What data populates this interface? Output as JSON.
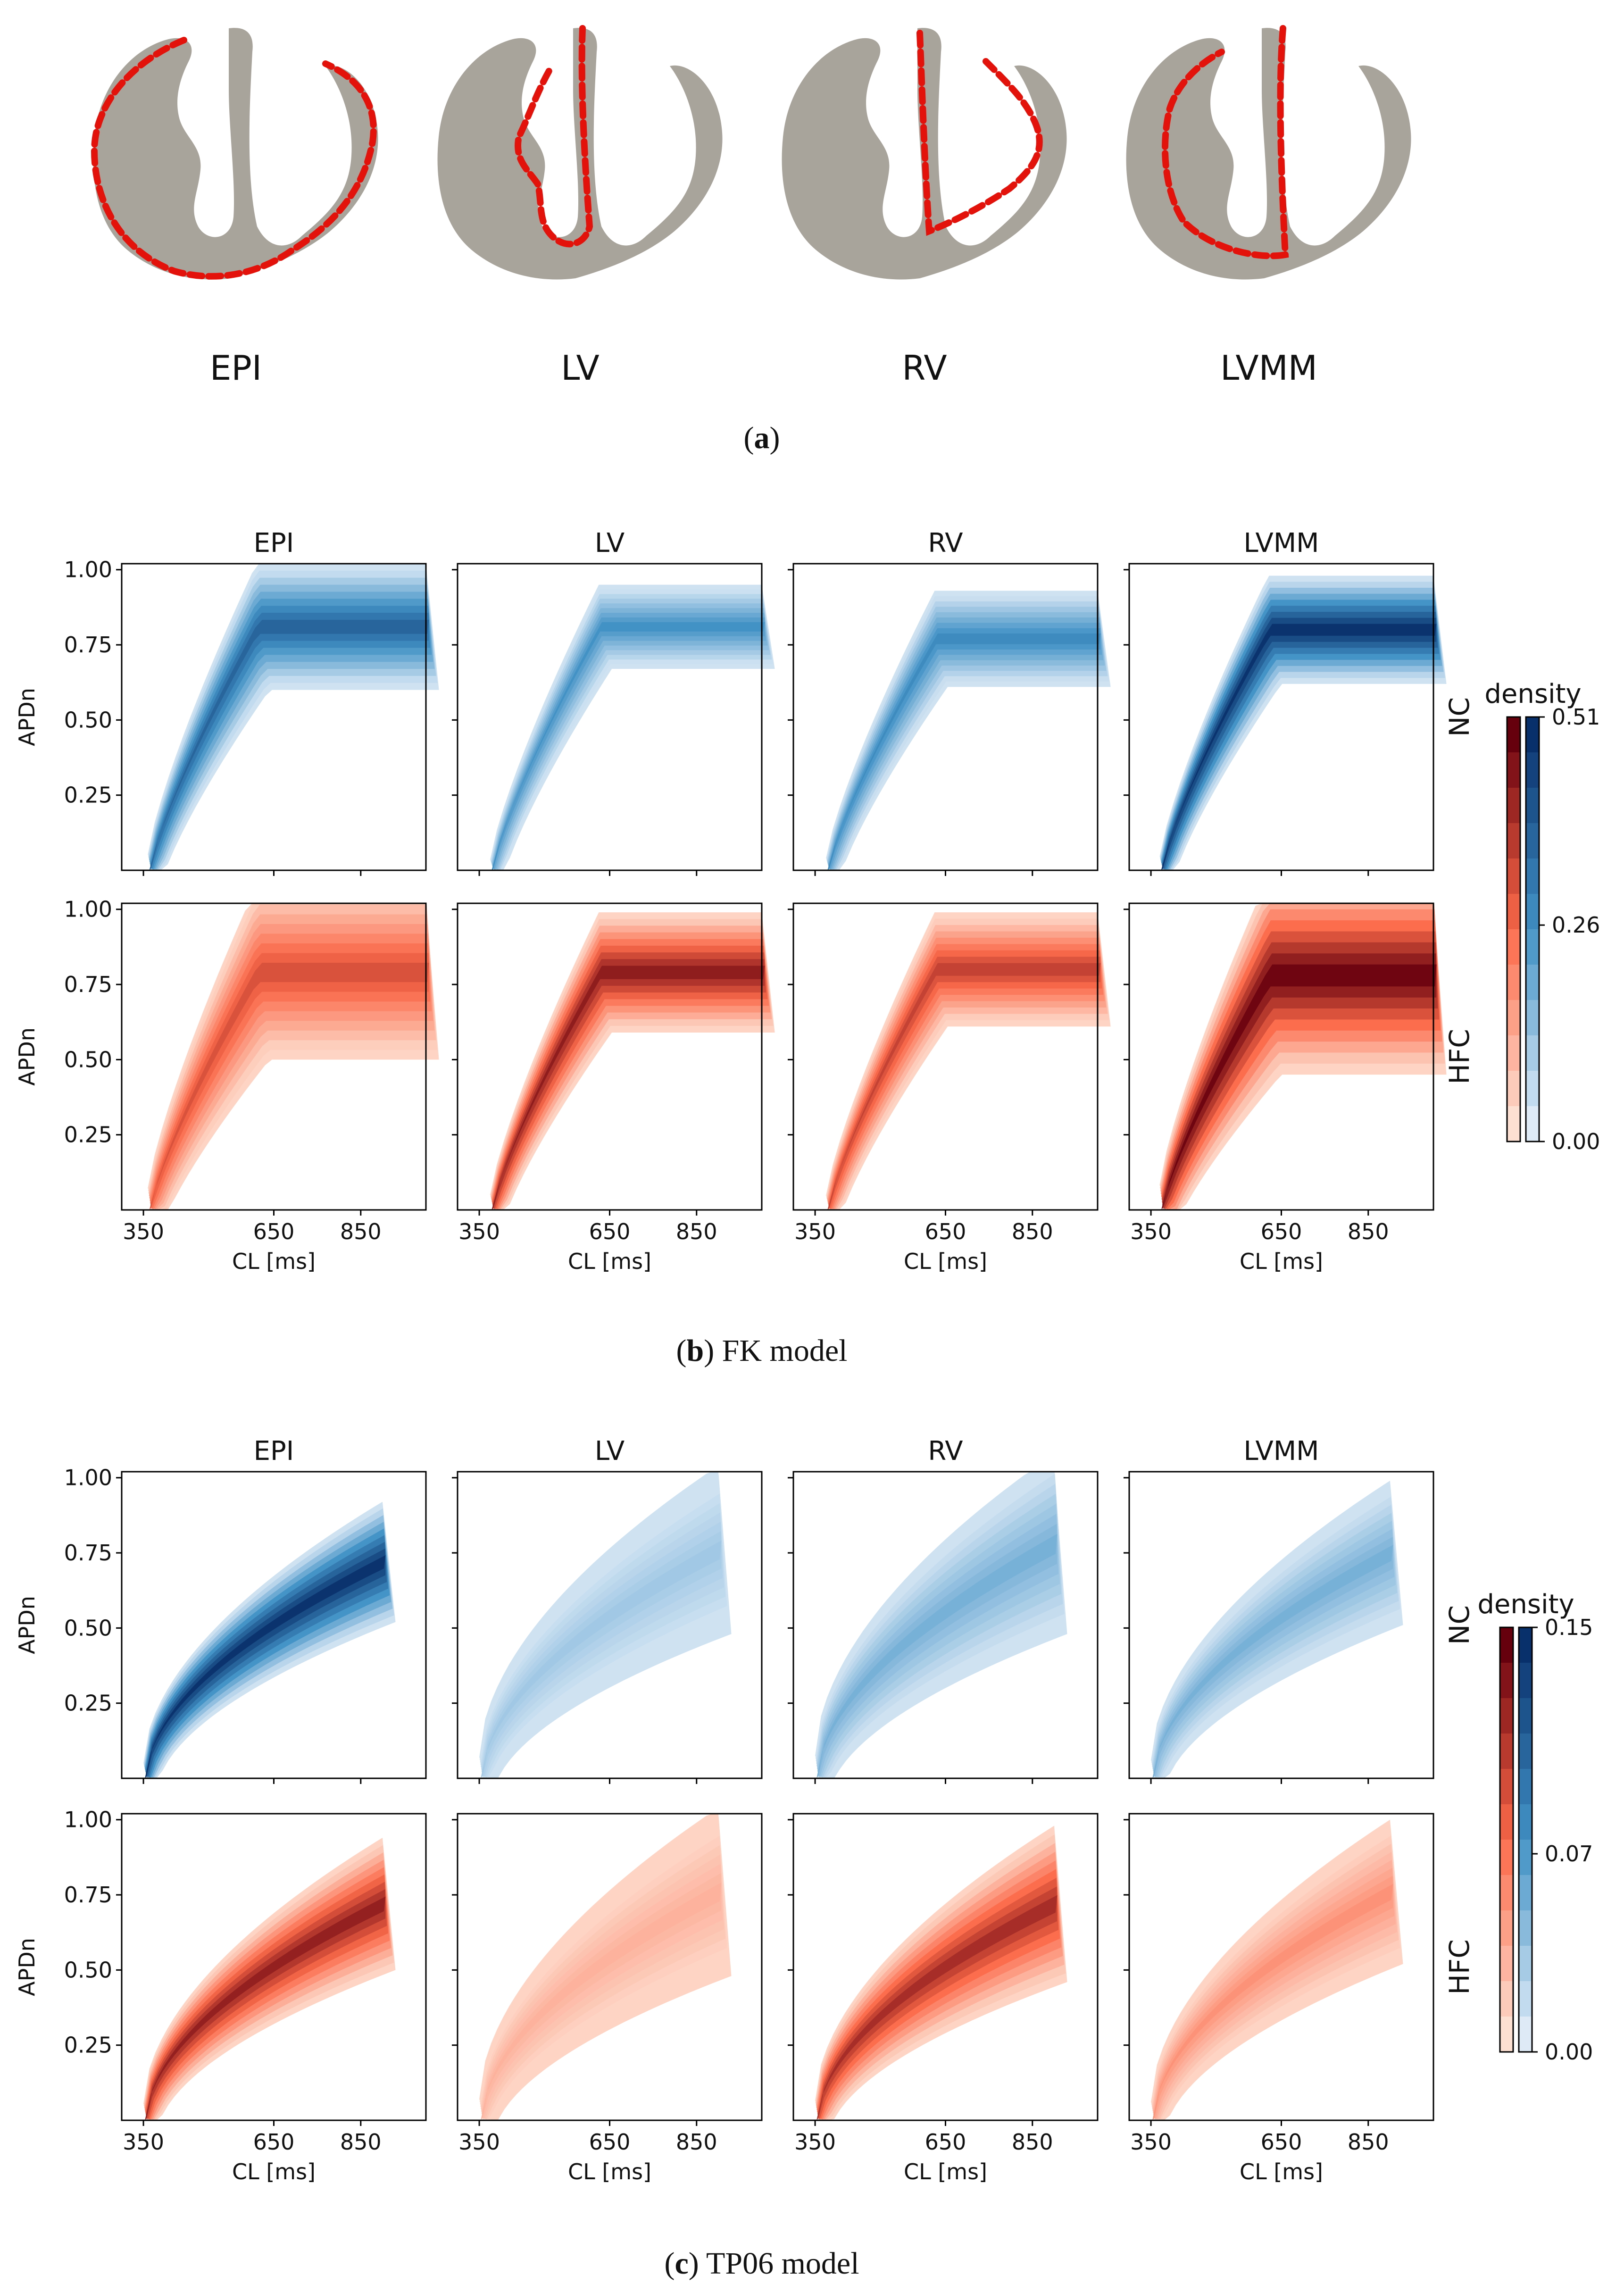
{
  "figure": {
    "part_a": {
      "regions": [
        "EPI",
        "LV",
        "RV",
        "LVMM"
      ],
      "caption_label": "a"
    },
    "part_b": {
      "caption_label": "b",
      "caption_text": " FK model",
      "row_labels": [
        "NC",
        "HFC"
      ],
      "colorbar": {
        "title": "density",
        "ticks": [
          "0.51",
          "0.26",
          "0.00"
        ],
        "max": 0.51
      }
    },
    "part_c": {
      "caption_label": "c",
      "caption_text": " TP06 model",
      "row_labels": [
        "NC",
        "HFC"
      ],
      "colorbar": {
        "title": "density",
        "ticks": [
          "0.15",
          "0.07",
          "0.00"
        ],
        "max": 0.15
      }
    }
  },
  "colors": {
    "outline": "#e3120b",
    "tissue": "#a8a49c",
    "blue_dark": "#08306b",
    "blue_mid": "#4292c6",
    "blue_light": "#deebf7",
    "red_dark": "#67000d",
    "red_mid": "#fb6a4a",
    "red_light": "#fee0d2"
  },
  "chart_data": [
    {
      "type": "area",
      "panel": "FK model",
      "columns": [
        "EPI",
        "LV",
        "RV",
        "LVMM"
      ],
      "rows": [
        "NC",
        "HFC"
      ],
      "xlabel": "CL [ms]",
      "ylabel": "APDn",
      "xticks": [
        350,
        650,
        850
      ],
      "yticks": [
        0.25,
        0.5,
        0.75,
        1.0
      ],
      "ytick_labels": [
        "0.25",
        "0.50",
        "0.75",
        "1.00"
      ],
      "xlim": [
        300,
        1000
      ],
      "ylim": [
        0.0,
        1.02
      ],
      "cl_start": [
        360,
        375,
        375,
        370
      ],
      "band_centers": {
        "NC": [
          0.81,
          0.81,
          0.77,
          0.8
        ],
        "HFC": [
          0.79,
          0.79,
          0.8,
          0.78
        ]
      },
      "band_spreads": {
        "NC": [
          0.21,
          0.14,
          0.16,
          0.18
        ],
        "HFC": [
          0.29,
          0.2,
          0.19,
          0.33
        ]
      },
      "peak_density": {
        "NC": [
          0.38,
          0.26,
          0.28,
          0.51
        ],
        "HFC": [
          0.32,
          0.45,
          0.36,
          0.51
        ]
      },
      "colorbar": {
        "label": "density",
        "ticks": [
          0.0,
          0.26,
          0.51
        ]
      }
    },
    {
      "type": "area",
      "panel": "TP06 model",
      "columns": [
        "EPI",
        "LV",
        "RV",
        "LVMM"
      ],
      "rows": [
        "NC",
        "HFC"
      ],
      "xlabel": "CL [ms]",
      "ylabel": "APDn",
      "xticks": [
        350,
        650,
        850
      ],
      "yticks": [
        0.25,
        0.5,
        0.75,
        1.0
      ],
      "ytick_labels": [
        "0.25",
        "0.50",
        "0.75",
        "1.00"
      ],
      "xlim": [
        300,
        1000
      ],
      "ylim": [
        0.0,
        1.02
      ],
      "cl_start": [
        350,
        350,
        350,
        350
      ],
      "cl_end": 900,
      "band_centers": {
        "NC": [
          0.72,
          0.76,
          0.78,
          0.75
        ],
        "HFC": [
          0.72,
          0.76,
          0.72,
          0.76
        ]
      },
      "band_spreads": {
        "NC": [
          0.2,
          0.28,
          0.3,
          0.24
        ],
        "HFC": [
          0.22,
          0.28,
          0.26,
          0.24
        ]
      },
      "peak_density": {
        "NC": [
          0.15,
          0.03,
          0.05,
          0.05
        ],
        "HFC": [
          0.13,
          0.03,
          0.12,
          0.05
        ]
      },
      "colorbar": {
        "label": "density",
        "ticks": [
          0.0,
          0.07,
          0.15
        ]
      }
    }
  ]
}
